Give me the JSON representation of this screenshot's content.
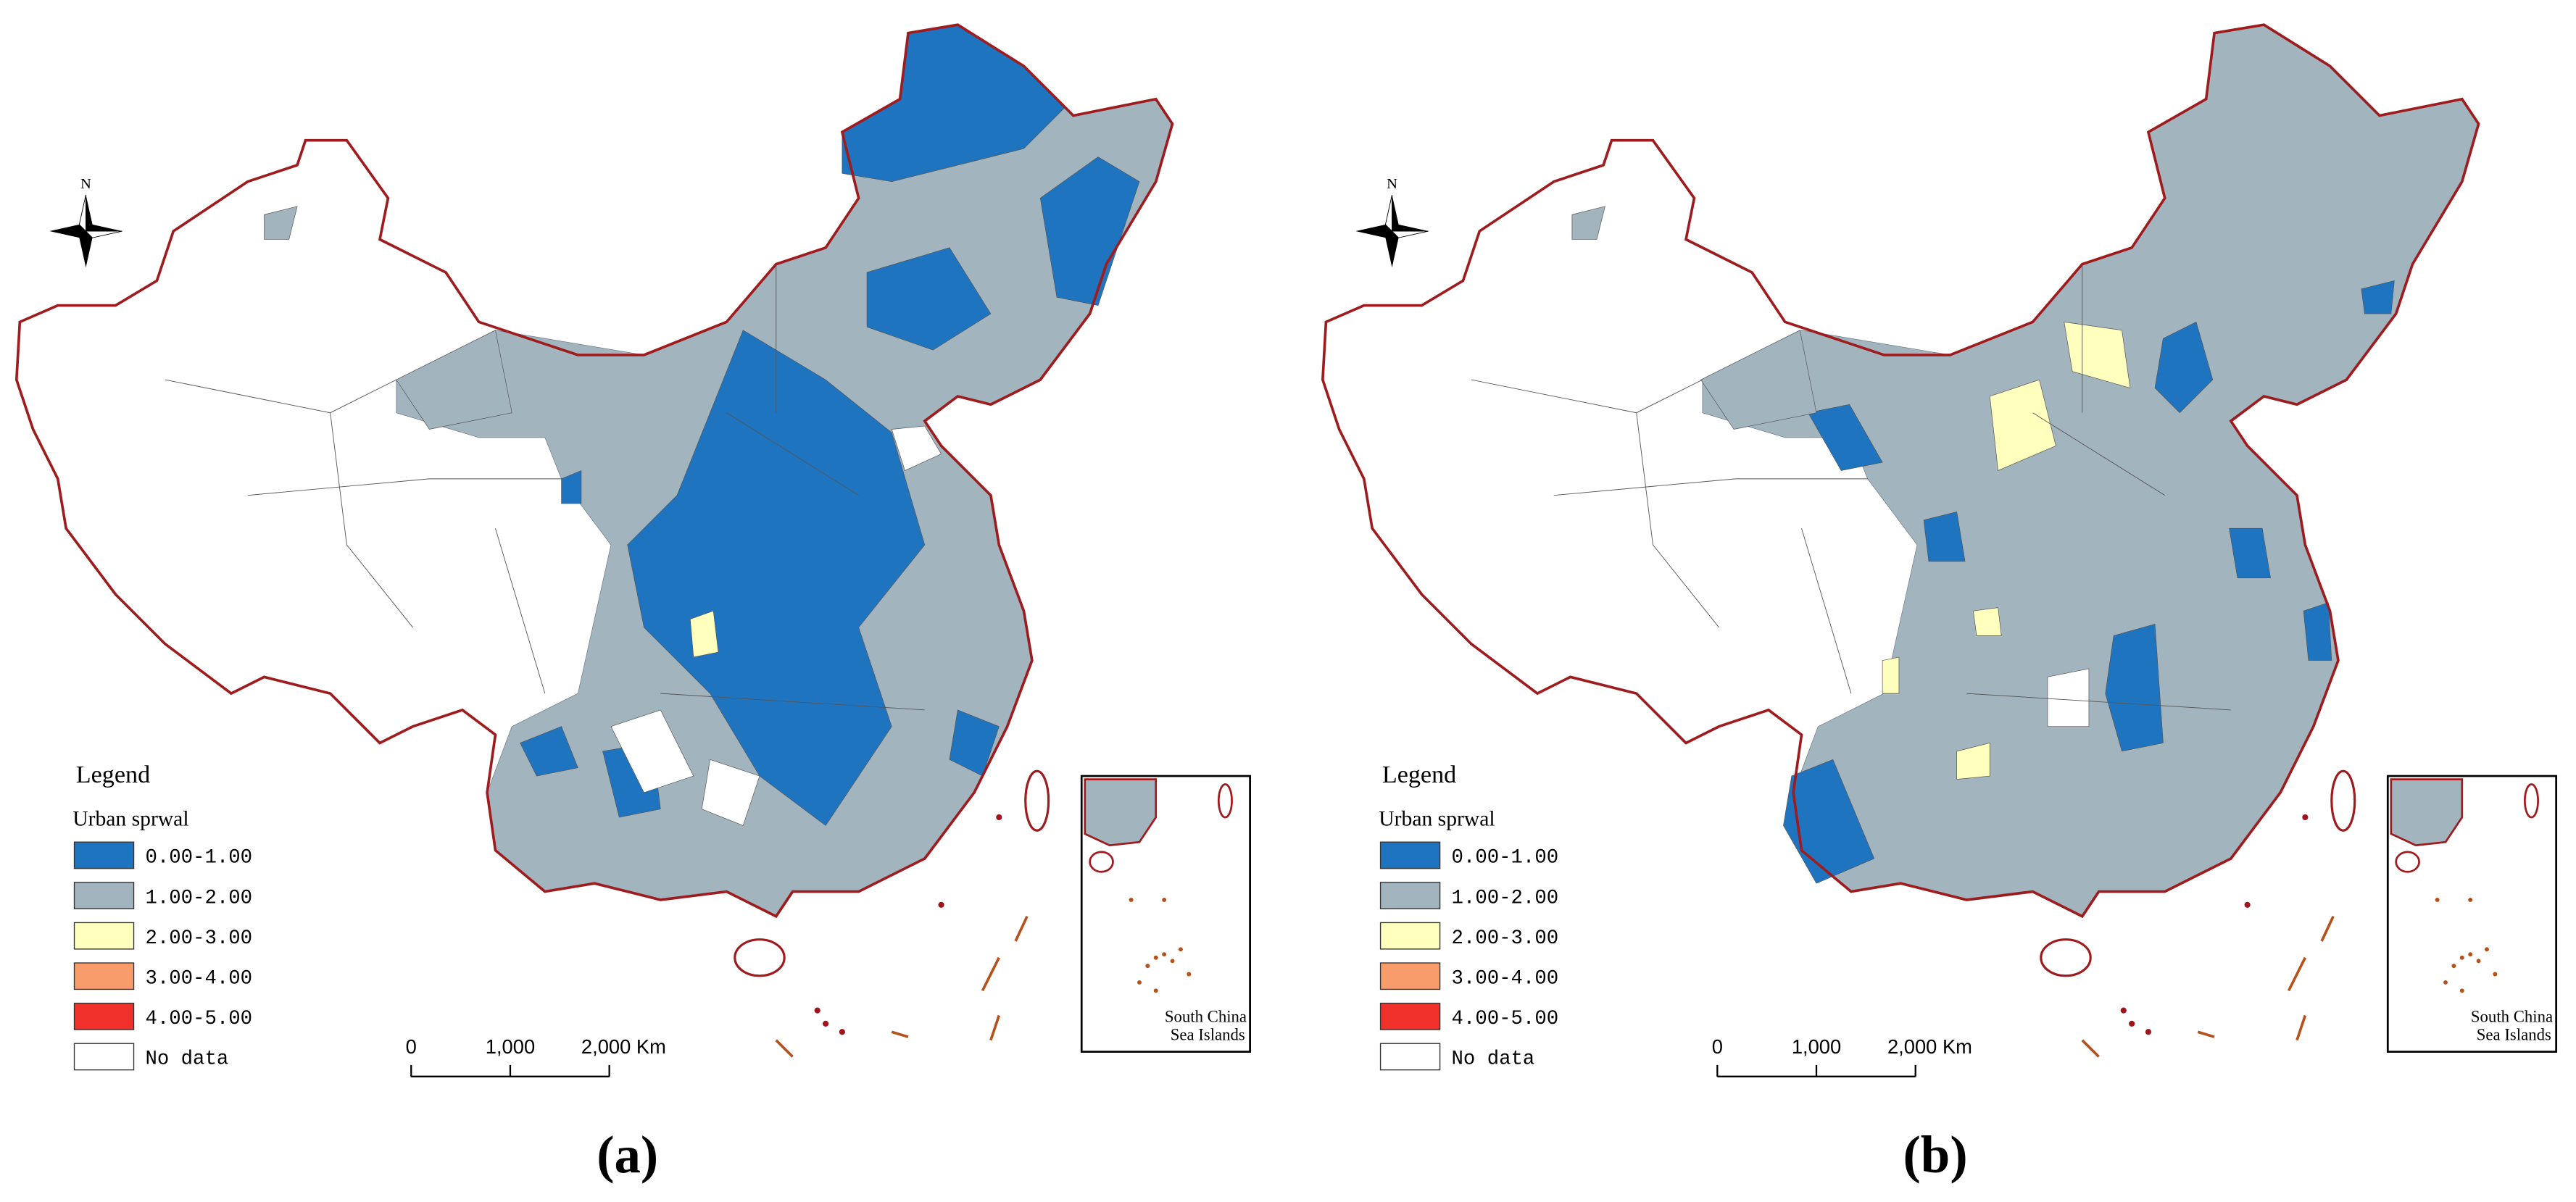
{
  "panels": [
    {
      "label": "(a)",
      "north": "N",
      "legend": {
        "title": "Legend",
        "subtitle": "Urban sprwal",
        "items": [
          {
            "label": "0.00-1.00",
            "color": "#1f74c0"
          },
          {
            "label": "1.00-2.00",
            "color": "#a2b4be"
          },
          {
            "label": "2.00-3.00",
            "color": "#ffffbe"
          },
          {
            "label": "3.00-4.00",
            "color": "#f89c6c"
          },
          {
            "label": "4.00-5.00",
            "color": "#f0302a"
          },
          {
            "label": "No data",
            "color": "#ffffff"
          }
        ]
      },
      "scale": {
        "ticks": [
          "0",
          "1,000",
          "2,000 Km"
        ]
      },
      "inset": {
        "caption": [
          "South China",
          "Sea Islands"
        ]
      }
    },
    {
      "label": "(b)",
      "north": "N",
      "legend": {
        "title": "Legend",
        "subtitle": "Urban sprwal",
        "items": [
          {
            "label": "0.00-1.00",
            "color": "#1f74c0"
          },
          {
            "label": "1.00-2.00",
            "color": "#a2b4be"
          },
          {
            "label": "2.00-3.00",
            "color": "#ffffbe"
          },
          {
            "label": "3.00-4.00",
            "color": "#f89c6c"
          },
          {
            "label": "4.00-5.00",
            "color": "#f0302a"
          },
          {
            "label": "No data",
            "color": "#ffffff"
          }
        ]
      },
      "scale": {
        "ticks": [
          "0",
          "1,000",
          "2,000 Km"
        ]
      },
      "inset": {
        "caption": [
          "South China",
          "Sea Islands"
        ]
      }
    }
  ]
}
